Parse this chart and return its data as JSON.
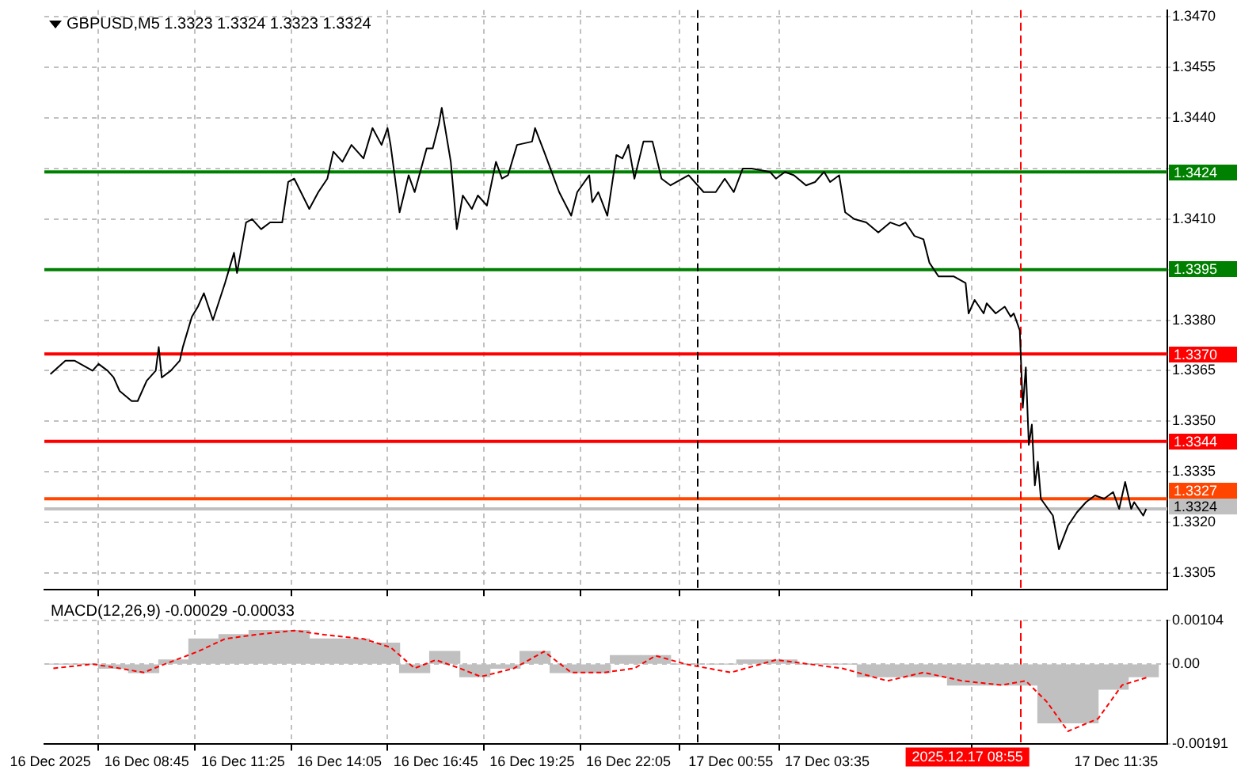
{
  "chart_data": [
    {
      "type": "line",
      "title": "GBPUSD,M5 1.3323 1.3324 1.3323 1.3324",
      "x": [
        "2025-12-16T06:05",
        "2025-12-16T06:30",
        "2025-12-16T06:45",
        "2025-12-16T07:15",
        "2025-12-16T07:25",
        "2025-12-16T07:40",
        "2025-12-16T07:50",
        "2025-12-16T08:00",
        "2025-12-16T08:20",
        "2025-12-16T08:30",
        "2025-12-16T08:45",
        "2025-12-16T09:00",
        "2025-12-16T09:05",
        "2025-12-16T09:10",
        "2025-12-16T09:25",
        "2025-12-16T09:40",
        "2025-12-16T09:45",
        "2025-12-16T10:00",
        "2025-12-16T10:10",
        "2025-12-16T10:20",
        "2025-12-16T10:35",
        "2025-12-16T10:55",
        "2025-12-16T11:10",
        "2025-12-16T11:15",
        "2025-12-16T11:30",
        "2025-12-16T11:40",
        "2025-12-16T11:55",
        "2025-12-16T12:10",
        "2025-12-16T12:30",
        "2025-12-16T12:40",
        "2025-12-16T12:50",
        "2025-12-16T13:15",
        "2025-12-16T13:30",
        "2025-12-16T13:45",
        "2025-12-16T13:55",
        "2025-12-16T14:10",
        "2025-12-16T14:25",
        "2025-12-16T14:45",
        "2025-12-16T15:00",
        "2025-12-16T15:15",
        "2025-12-16T15:25",
        "2025-12-16T15:30",
        "2025-12-16T15:45",
        "2025-12-16T16:00",
        "2025-12-16T16:10",
        "2025-12-16T16:30",
        "2025-12-16T16:40",
        "2025-12-16T16:50",
        "2025-12-16T16:55",
        "2025-12-16T17:10",
        "2025-12-16T17:20",
        "2025-12-16T17:30",
        "2025-12-16T17:45",
        "2025-12-16T17:55",
        "2025-12-16T18:10",
        "2025-12-16T18:25",
        "2025-12-16T18:35",
        "2025-12-16T18:45",
        "2025-12-16T19:00",
        "2025-12-16T19:25",
        "2025-12-16T19:30",
        "2025-12-16T19:45",
        "2025-12-16T20:10",
        "2025-12-16T20:30",
        "2025-12-16T20:40",
        "2025-12-16T21:00",
        "2025-12-16T21:05",
        "2025-12-16T21:15",
        "2025-12-16T21:30",
        "2025-12-16T21:45",
        "2025-12-16T21:55",
        "2025-12-16T22:05",
        "2025-12-16T22:15",
        "2025-12-16T22:30",
        "2025-12-16T22:45",
        "2025-12-16T23:00",
        "2025-12-16T23:15",
        "2025-12-16T23:45",
        "2025-12-17T00:10",
        "2025-12-17T00:30",
        "2025-12-17T00:45",
        "2025-12-17T01:00",
        "2025-12-17T01:15",
        "2025-12-17T01:30",
        "2025-12-17T02:00",
        "2025-12-17T02:10",
        "2025-12-17T02:25",
        "2025-12-17T02:40",
        "2025-12-17T03:00",
        "2025-12-17T03:15",
        "2025-12-17T03:30",
        "2025-12-17T03:40",
        "2025-12-17T03:55",
        "2025-12-17T04:05",
        "2025-12-17T04:20",
        "2025-12-17T04:40",
        "2025-12-17T05:00",
        "2025-12-17T05:20",
        "2025-12-17T05:35",
        "2025-12-17T05:45",
        "2025-12-17T06:00",
        "2025-12-17T06:15",
        "2025-12-17T06:25",
        "2025-12-17T06:40",
        "2025-12-17T07:05",
        "2025-12-17T07:25",
        "2025-12-17T07:30",
        "2025-12-17T07:40",
        "2025-12-17T07:55",
        "2025-12-17T08:00",
        "2025-12-17T08:15",
        "2025-12-17T08:30",
        "2025-12-17T08:40",
        "2025-12-17T08:45",
        "2025-12-17T08:55",
        "2025-12-17T09:00",
        "2025-12-17T09:05",
        "2025-12-17T09:10",
        "2025-12-17T09:15",
        "2025-12-17T09:20",
        "2025-12-17T09:25",
        "2025-12-17T09:30",
        "2025-12-17T09:50",
        "2025-12-17T10:00",
        "2025-12-17T10:15",
        "2025-12-17T10:30",
        "2025-12-17T10:45",
        "2025-12-17T11:00",
        "2025-12-17T11:15",
        "2025-12-17T11:30",
        "2025-12-17T11:40",
        "2025-12-17T11:50",
        "2025-12-17T12:00",
        "2025-12-17T12:05",
        "2025-12-17T12:20",
        "2025-12-17T12:25"
      ],
      "series": [
        {
          "color": "#000000",
          "values": [
            1.3364,
            1.3368,
            1.3368,
            1.3365,
            1.3367,
            1.3365,
            1.3363,
            1.3359,
            1.3356,
            1.3356,
            1.3362,
            1.3365,
            1.3372,
            1.3363,
            1.3365,
            1.3368,
            1.3372,
            1.3381,
            1.3384,
            1.3388,
            1.338,
            1.3391,
            1.34,
            1.3394,
            1.3409,
            1.341,
            1.3407,
            1.3409,
            1.3409,
            1.3421,
            1.3422,
            1.3413,
            1.3418,
            1.3422,
            1.343,
            1.3427,
            1.3432,
            1.3428,
            1.3437,
            1.3432,
            1.3437,
            1.3432,
            1.3412,
            1.3423,
            1.3418,
            1.3431,
            1.3431,
            1.3438,
            1.3443,
            1.3427,
            1.3407,
            1.3417,
            1.3413,
            1.3417,
            1.3414,
            1.3427,
            1.3422,
            1.3423,
            1.3432,
            1.3433,
            1.3437,
            1.343,
            1.3418,
            1.3411,
            1.3418,
            1.3423,
            1.3415,
            1.3418,
            1.3411,
            1.3429,
            1.3428,
            1.3432,
            1.3422,
            1.3433,
            1.3433,
            1.3422,
            1.342,
            1.3423,
            1.3418,
            1.3418,
            1.3422,
            1.3418,
            1.3425,
            1.3425,
            1.3424,
            1.3422,
            1.3424,
            1.3423,
            1.342,
            1.3421,
            1.3424,
            1.3421,
            1.3423,
            1.3412,
            1.341,
            1.3409,
            1.3406,
            1.3409,
            1.3408,
            1.3409,
            1.3405,
            1.3404,
            1.3397,
            1.3393,
            1.3393,
            1.3391,
            1.3382,
            1.3386,
            1.3382,
            1.3385,
            1.3382,
            1.3384,
            1.3381,
            1.3382,
            1.3377,
            1.3354,
            1.3366,
            1.3343,
            1.3349,
            1.3331,
            1.3338,
            1.3327,
            1.3322,
            1.3312,
            1.3319,
            1.3323,
            1.3326,
            1.3328,
            1.3327,
            1.3329,
            1.3324,
            1.3332,
            1.3324,
            1.3326,
            1.3322,
            1.3324
          ]
        }
      ],
      "xlim": [
        "2025-12-16T05:55",
        "2025-12-17T13:00"
      ],
      "xticks": [
        {
          "value": "2025-12-16T06:05",
          "label": null
        },
        {
          "value": "2025-12-16T08:45",
          "label": null
        },
        {
          "value": "2025-12-16T11:25",
          "label": null
        },
        {
          "value": "2025-12-16T14:05",
          "label": null
        },
        {
          "value": "2025-12-16T16:45",
          "label": null
        },
        {
          "value": "2025-12-16T19:25",
          "label": null
        },
        {
          "value": "2025-12-16T22:05",
          "label": null
        },
        {
          "value": "2025-12-17T00:55",
          "label": null
        },
        {
          "value": "2025-12-17T03:35",
          "label": null
        },
        {
          "value": "2025-12-17T11:35",
          "label": null
        }
      ],
      "ylim": [
        1.33,
        1.3472
      ],
      "yticks": [
        {
          "value": 1.347,
          "label": "1.3470"
        },
        1.3455,
        {
          "value": 1.344,
          "label": "1.3440"
        },
        {
          "value": 1.3425,
          "label": null
        },
        {
          "value": 1.341,
          "label": "1.3410"
        },
        {
          "value": 1.3395,
          "label": null
        },
        {
          "value": 1.338,
          "label": "1.3380"
        },
        1.3365,
        {
          "value": 1.335,
          "label": "1.3350"
        },
        1.3335,
        {
          "value": 1.332,
          "label": "1.3320"
        },
        1.3305
      ],
      "ref_lines": [
        {
          "axis": "y",
          "value": 1.3424,
          "label": "1.3424",
          "color": "#008000"
        },
        {
          "axis": "y",
          "value": 1.3395,
          "label": "1.3395",
          "color": "#008000"
        },
        {
          "axis": "y",
          "value": 1.337,
          "label": "1.3370",
          "color": "#ff0000"
        },
        {
          "axis": "y",
          "value": 1.3344,
          "label": "1.3344",
          "color": "#ff0000"
        },
        {
          "axis": "y",
          "value": 1.3327,
          "label": "1.3327",
          "color": "#ff4500"
        },
        {
          "axis": "y",
          "value": 1.3324,
          "label": "1.3324",
          "color": "#c0c0c0"
        },
        {
          "axis": "x",
          "value": "2025-12-17T00:00",
          "color": "#000000",
          "line_style": "dashed"
        },
        {
          "axis": "x",
          "value": "2025-12-17T08:55",
          "color": "#ff0000",
          "line_style": "dashed"
        }
      ],
      "grid": true,
      "tick_labels": "y"
    },
    {
      "type": "bar",
      "title": "MACD(12,26,9) -0.00029 -0.00033",
      "series": [
        {
          "color": "#c0c0c0",
          "x": [
            "2025-12-16T06:10",
            "2025-12-16T07:00",
            "2025-12-16T07:50",
            "2025-12-16T08:40",
            "2025-12-16T09:30",
            "2025-12-16T10:20",
            "2025-12-16T11:10",
            "2025-12-16T12:00",
            "2025-12-16T12:50",
            "2025-12-16T13:40",
            "2025-12-16T14:30",
            "2025-12-16T15:20",
            "2025-12-16T16:10",
            "2025-12-16T17:00",
            "2025-12-16T17:50",
            "2025-12-16T18:40",
            "2025-12-16T19:30",
            "2025-12-16T20:20",
            "2025-12-16T21:10",
            "2025-12-16T22:00",
            "2025-12-16T22:50",
            "2025-12-16T23:40",
            "2025-12-17T00:40",
            "2025-12-17T01:30",
            "2025-12-17T02:20",
            "2025-12-17T03:10",
            "2025-12-17T04:00",
            "2025-12-17T04:50",
            "2025-12-17T05:40",
            "2025-12-17T06:30",
            "2025-12-17T07:20",
            "2025-12-17T08:10",
            "2025-12-17T09:00",
            "2025-12-17T09:50",
            "2025-12-17T10:40",
            "2025-12-17T11:30",
            "2025-12-17T12:20"
          ],
          "values": [
            0,
            0,
            -0.0001,
            -0.0002,
            0.0001,
            0.0006,
            0.0007,
            0.0008,
            0.0008,
            0.0006,
            0.0006,
            0.0005,
            -0.0002,
            0.0003,
            -0.0003,
            -0.0001,
            0.0003,
            -0.0002,
            -0.0002,
            0.0002,
            0.0002,
            0,
            0,
            0.0001,
            0.0001,
            0,
            0,
            -0.0003,
            -0.0003,
            -0.0003,
            -0.0005,
            -0.0005,
            -0.0005,
            -0.0014,
            -0.0014,
            -0.0006,
            -0.0003
          ]
        },
        {
          "type": "line",
          "color": "#ff0000",
          "x": [
            "2025-12-16T06:10",
            "2025-12-16T07:15",
            "2025-12-16T08:00",
            "2025-12-16T08:40",
            "2025-12-16T09:15",
            "2025-12-16T10:10",
            "2025-12-16T10:55",
            "2025-12-16T11:45",
            "2025-12-16T12:50",
            "2025-12-16T13:40",
            "2025-12-16T14:45",
            "2025-12-16T15:30",
            "2025-12-16T16:10",
            "2025-12-16T16:45",
            "2025-12-16T17:25",
            "2025-12-16T18:00",
            "2025-12-16T18:55",
            "2025-12-16T19:45",
            "2025-12-16T20:30",
            "2025-12-16T21:25",
            "2025-12-16T22:15",
            "2025-12-16T22:50",
            "2025-12-16T23:40",
            "2025-12-17T00:55",
            "2025-12-17T02:10",
            "2025-12-17T04:00",
            "2025-12-17T05:15",
            "2025-12-17T06:15",
            "2025-12-17T07:20",
            "2025-12-17T08:25",
            "2025-12-17T09:05",
            "2025-12-17T09:40",
            "2025-12-17T10:15",
            "2025-12-17T11:05",
            "2025-12-17T11:45",
            "2025-12-17T12:30"
          ],
          "values": [
            -0.0001,
            0,
            -0.0001,
            -0.0002,
            0,
            0.0003,
            0.0006,
            0.0007,
            0.0008,
            0.0007,
            0.0006,
            0.0004,
            -0.0001,
            0.0001,
            -0.0001,
            -0.0003,
            -0.0001,
            0.0003,
            -0.0002,
            -0.0002,
            -0.0001,
            0.0002,
            0,
            -0.0002,
            0.0001,
            -0.0001,
            -0.0004,
            -0.0002,
            -0.0004,
            -0.0005,
            -0.0004,
            -0.0009,
            -0.0016,
            -0.0013,
            -0.0005,
            -0.0003
          ]
        }
      ],
      "xlim": [
        "2025-12-16T05:55",
        "2025-12-17T13:00"
      ],
      "xticks": [
        {
          "value": "2025-12-16T06:05",
          "label": "16 Dec 2025"
        },
        {
          "value": "2025-12-16T08:45",
          "label": "16 Dec 08:45"
        },
        {
          "value": "2025-12-16T11:25",
          "label": "16 Dec 11:25"
        },
        {
          "value": "2025-12-16T14:05",
          "label": "16 Dec 14:05"
        },
        {
          "value": "2025-12-16T16:45",
          "label": "16 Dec 16:45"
        },
        {
          "value": "2025-12-16T19:25",
          "label": "16 Dec 19:25"
        },
        {
          "value": "2025-12-16T22:05",
          "label": "16 Dec 22:05"
        },
        {
          "value": "2025-12-17T00:55",
          "label": "17 Dec 00:55"
        },
        {
          "value": "2025-12-17T03:35",
          "label": "17 Dec 03:35"
        },
        {
          "value": "2025-12-17T11:35",
          "label": "17 Dec 11:35"
        }
      ],
      "ylim": [
        -0.00191,
        0.00104
      ],
      "yticks": [
        0.00104,
        {
          "value": 0,
          "label": "0.00"
        },
        -0.00191
      ],
      "ref_lines": [
        {
          "axis": "x",
          "value": "2025-12-17T00:00",
          "color": "#000000",
          "line_style": "dashed"
        },
        {
          "axis": "x",
          "value": "2025-12-17T08:55",
          "label": "2025.12.17 08:55",
          "color": "#ff0000",
          "line_style": "dashed"
        }
      ],
      "grid": true,
      "line_style": "dashed"
    }
  ]
}
